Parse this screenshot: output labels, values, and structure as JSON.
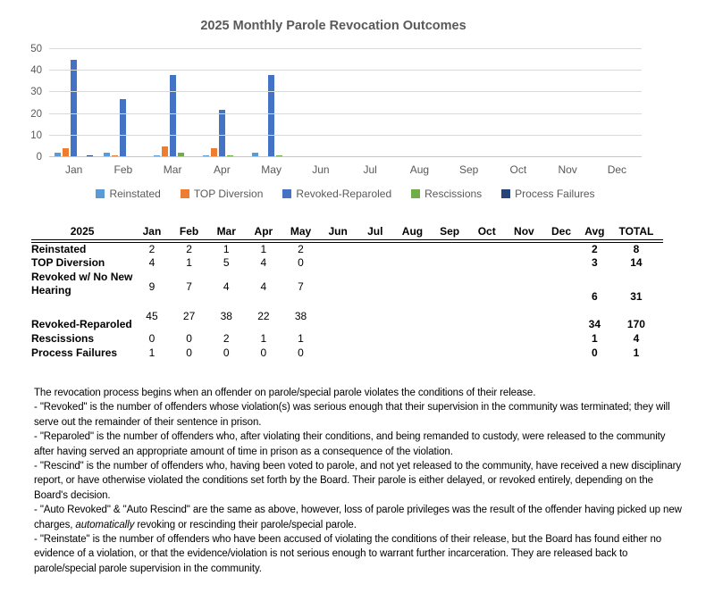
{
  "chart_data": {
    "type": "bar",
    "title": "2025 Monthly Parole Revocation Outcomes",
    "categories": [
      "Jan",
      "Feb",
      "Mar",
      "Apr",
      "May",
      "Jun",
      "Jul",
      "Aug",
      "Sep",
      "Oct",
      "Nov",
      "Dec"
    ],
    "series": [
      {
        "name": "Reinstated",
        "color": "#5B9BD5",
        "values": [
          2,
          2,
          1,
          1,
          2,
          null,
          null,
          null,
          null,
          null,
          null,
          null
        ]
      },
      {
        "name": "TOP Diversion",
        "color": "#ED7D31",
        "values": [
          4,
          1,
          5,
          4,
          0,
          null,
          null,
          null,
          null,
          null,
          null,
          null
        ]
      },
      {
        "name": "Revoked-Reparoled",
        "color": "#4472C4",
        "values": [
          45,
          27,
          38,
          22,
          38,
          null,
          null,
          null,
          null,
          null,
          null,
          null
        ]
      },
      {
        "name": "Rescissions",
        "color": "#70AD47",
        "values": [
          0,
          0,
          2,
          1,
          1,
          null,
          null,
          null,
          null,
          null,
          null,
          null
        ]
      },
      {
        "name": "Process Failures",
        "color": "#264478",
        "values": [
          1,
          0,
          0,
          0,
          0,
          null,
          null,
          null,
          null,
          null,
          null,
          null
        ]
      }
    ],
    "xlabel": "",
    "ylabel": "",
    "ylim": [
      0,
      50
    ],
    "ytick_interval": 10,
    "grid": true,
    "legend_position": "bottom",
    "axis_text_color": "#595959",
    "gridline_color": "#D9D9D9"
  },
  "table": {
    "year_header": "2025",
    "month_columns": [
      "Jan",
      "Feb",
      "Mar",
      "Apr",
      "May",
      "Jun",
      "Jul",
      "Aug",
      "Sep",
      "Oct",
      "Nov",
      "Dec"
    ],
    "avg_header": "Avg",
    "total_header": "TOTAL",
    "rows": [
      {
        "label": "Reinstated",
        "style": "normal",
        "values": [
          2,
          2,
          1,
          1,
          2,
          null,
          null,
          null,
          null,
          null,
          null,
          null
        ],
        "avg": 2,
        "total": 8
      },
      {
        "label": "TOP Diversion",
        "style": "normal",
        "values": [
          4,
          1,
          5,
          4,
          0,
          null,
          null,
          null,
          null,
          null,
          null,
          null
        ],
        "avg": 3,
        "total": 14
      },
      {
        "label": "Revoked w/ No New Hearing",
        "style": "twoline",
        "values": [
          9,
          7,
          4,
          4,
          7,
          null,
          null,
          null,
          null,
          null,
          null,
          null
        ],
        "avg": 6,
        "total": 31
      },
      {
        "label": "Revoked-Reparoled",
        "style": "talltop",
        "values": [
          45,
          27,
          38,
          22,
          38,
          null,
          null,
          null,
          null,
          null,
          null,
          null
        ],
        "avg": 34,
        "total": 170
      },
      {
        "label": "Rescissions",
        "style": "normal",
        "values": [
          0,
          0,
          2,
          1,
          1,
          null,
          null,
          null,
          null,
          null,
          null,
          null
        ],
        "avg": 1,
        "total": 4
      },
      {
        "label": "Process Failures",
        "style": "normal",
        "values": [
          1,
          0,
          0,
          0,
          0,
          null,
          null,
          null,
          null,
          null,
          null,
          null
        ],
        "avg": 0,
        "total": 1
      }
    ]
  },
  "notes": {
    "paragraphs": [
      [
        {
          "text": "The revocation process begins when an offender on parole/special parole violates the conditions of their release."
        }
      ],
      [
        {
          "text": "- \"Revoked\" is the number of offenders whose violation(s) was serious enough that their supervision in the community was terminated; they will serve out the remainder of their sentence in prison."
        }
      ],
      [
        {
          "text": "- \"Reparoled\" is the number of offenders who, after violating their conditions, and being remanded to custody, were released to the community after having served an appropriate amount of time in prison as a consequence of the violation."
        }
      ],
      [
        {
          "text": "- \"Rescind\" is the number of offenders who, having been voted to parole, and not yet released to the community, have received a new disciplinary report, or have otherwise violated the conditions set forth by the Board.  Their parole is either delayed, or revoked entirely, depending on the Board's decision."
        }
      ],
      [
        {
          "text": "- \"Auto Revoked\" & \"Auto Rescind\" are the same as above, however, loss of parole privileges was the result of the offender having picked up new charges, "
        },
        {
          "text": "automatically",
          "italic": true
        },
        {
          "text": "  revoking or rescinding their parole/special parole."
        }
      ],
      [
        {
          "text": "- \"Reinstate\" is the number of offenders who have been accused of violating the conditions of their release, but the Board has found either no evidence of a violation, or that the evidence/violation is not serious enough to warrant further incarceration.  They are released back to parole/special parole supervision in the community."
        }
      ]
    ]
  }
}
